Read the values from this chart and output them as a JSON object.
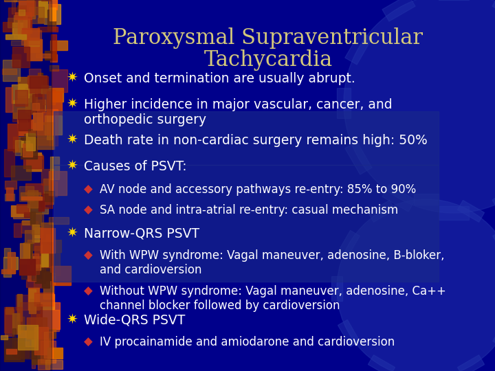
{
  "title_line1": "Paroxysmal Supraventricular",
  "title_line2": "Tachycardia",
  "title_color": "#d4c87a",
  "bg_color": "#00008B",
  "text_color": "#ffffff",
  "bullet_color_main": "#FFD700",
  "bullet_color_sub": "#CC3333",
  "title_fontsize": 22,
  "main_fontsize": 13.5,
  "sub_fontsize": 12,
  "main_bullets": [
    "Onset and termination are usually abrupt.",
    "Higher incidence in major vascular, cancer, and\northopedic surgery",
    "Death rate in non-cardiac surgery remains high: 50%",
    "Causes of PSVT:"
  ],
  "sub_bullets_causes": [
    "AV node and accessory pathways re-entry: 85% to 90%",
    "SA node and intra-atrial re-entry: casual mechanism"
  ],
  "narrow_qrs": "Narrow-QRS PSVT",
  "sub_bullets_narrow": [
    "With WPW syndrome: Vagal maneuver, adenosine, B-bloker,\nand cardioversion",
    "Without WPW syndrome: Vagal maneuver, adenosine, Ca++\nchannel blocker followed by cardioversion"
  ],
  "wide_qrs": "Wide-QRS PSVT",
  "sub_bullets_wide": [
    "IV procainamide and amiodarone and cardioversion"
  ],
  "left_panel_colors": [
    "#cc4400",
    "#ff8800",
    "#aa2200",
    "#884400",
    "#cc6600"
  ],
  "gear_color": "#3333aa",
  "panel_blue": "#4455aa"
}
